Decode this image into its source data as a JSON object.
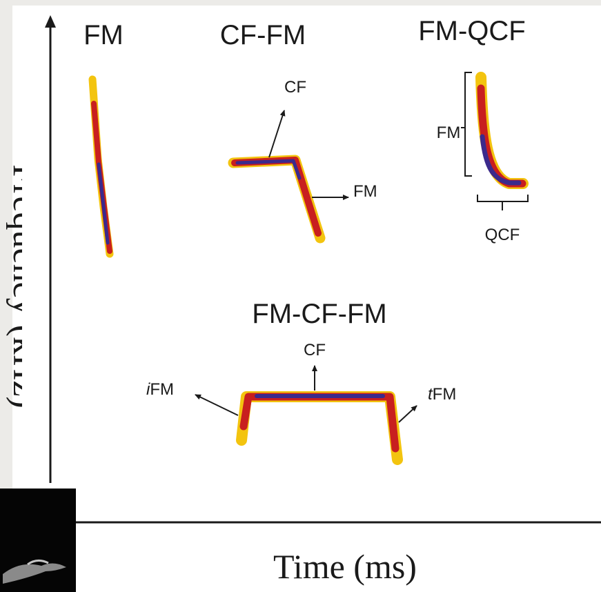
{
  "axes": {
    "y_label": "Frequency (kHz)",
    "x_label": "Time (ms)"
  },
  "panels": {
    "fm": {
      "title": "FM"
    },
    "cf_fm": {
      "title": "CF-FM",
      "cf_label": "CF",
      "fm_label": "FM"
    },
    "fm_qcf": {
      "title": "FM-QCF",
      "fm_label": "FM",
      "qcf_label": "QCF"
    },
    "fm_cf_fm": {
      "title": "FM-CF-FM",
      "cf_label": "CF",
      "ifm_prefix": "i",
      "ifm_label": "FM",
      "tfm_prefix": "t",
      "tfm_label": "FM"
    }
  },
  "colors": {
    "call_outer": "#f3c40f",
    "call_mid": "#c81f1f",
    "call_core": "#3b2a8c",
    "panel_bg": "#ffffff",
    "page_bg": "#ecebe8",
    "ink": "#1a1a1a"
  },
  "icons": [
    "bat-photo-thumbnail"
  ]
}
